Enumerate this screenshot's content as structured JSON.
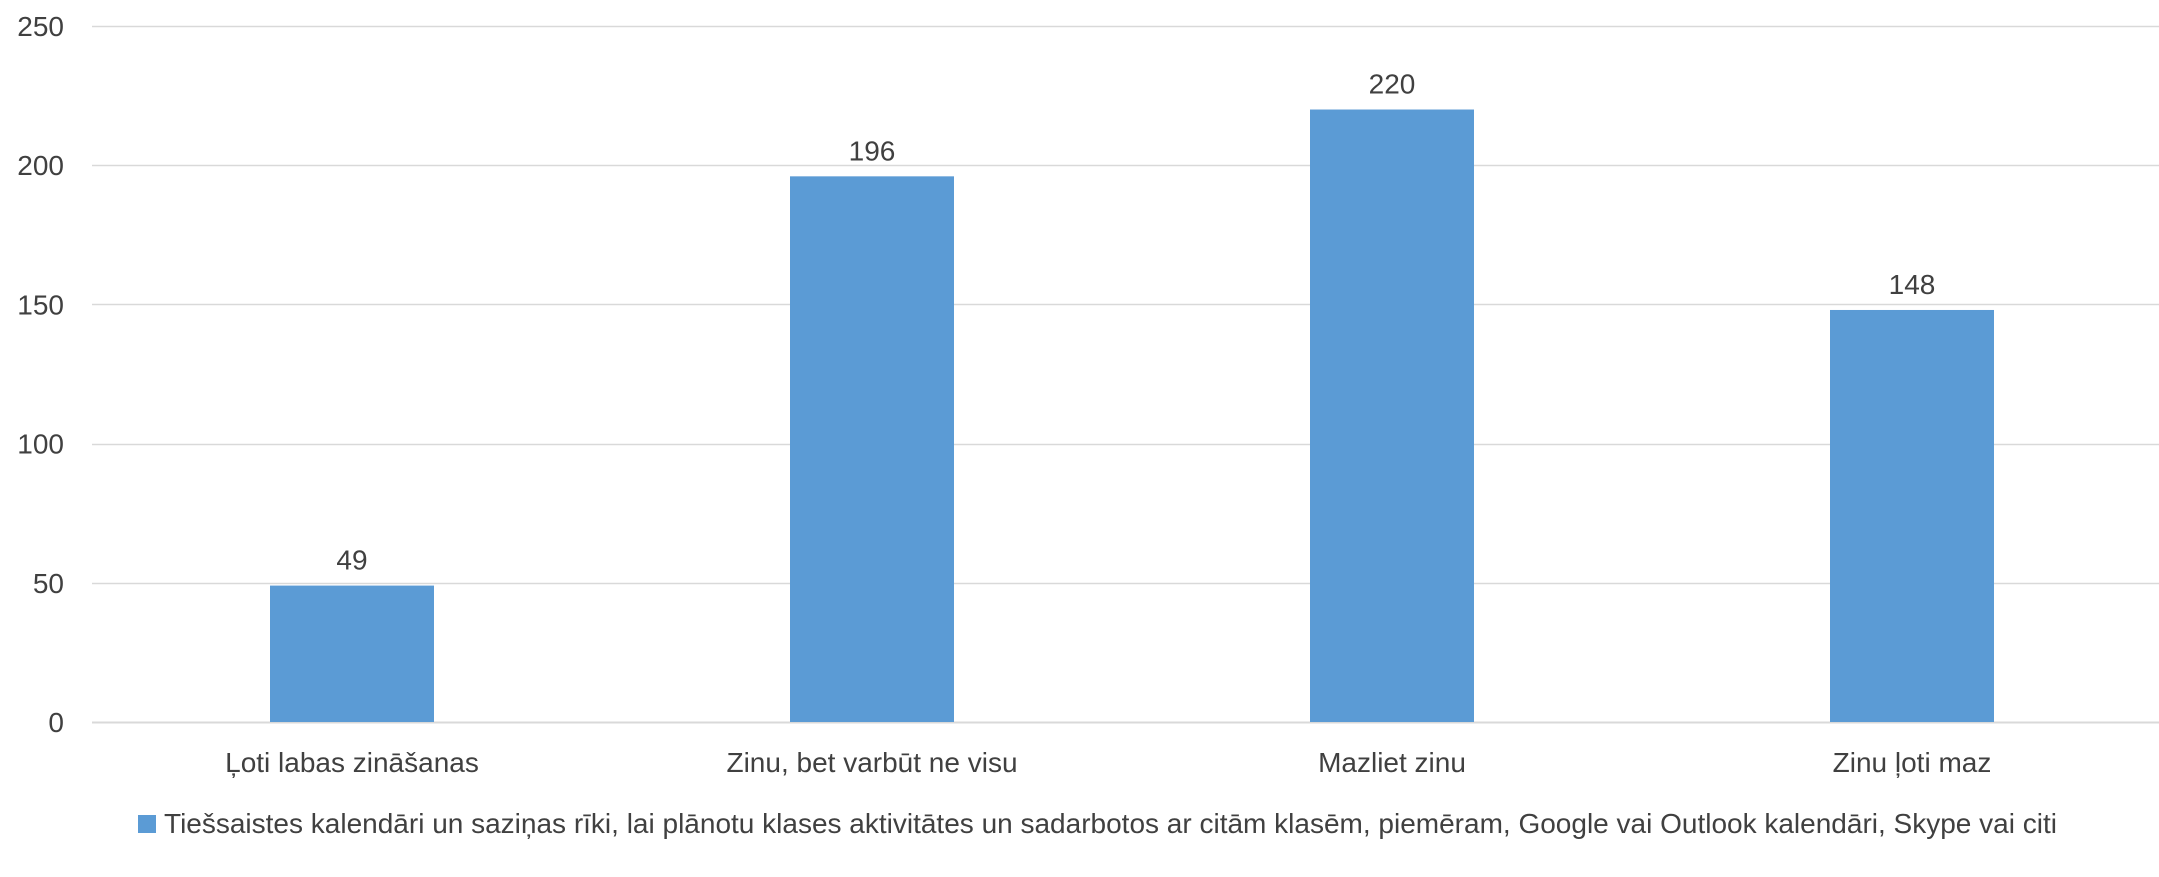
{
  "chart_data": {
    "type": "bar",
    "title": "",
    "xlabel": "",
    "ylabel": "",
    "categories": [
      "Ļoti labas zināšanas",
      "Zinu, bet varbūt ne visu",
      "Mazliet zinu",
      "Zinu ļoti maz"
    ],
    "series": [
      {
        "name": "Tiešsaistes kalendāri un saziņas rīki, lai plānotu klases aktivitātes un sadarbotos ar citām klasēm, piemēram, Google vai Outlook kalendāri, Skype vai citi",
        "values": [
          49,
          196,
          220,
          148
        ],
        "color": "#5b9bd5"
      }
    ],
    "ylim": [
      0,
      250
    ],
    "yticks": [
      0,
      50,
      100,
      150,
      200,
      250
    ],
    "grid": true,
    "gridColor": "#d9d9d9",
    "data_labels": true,
    "legend": "bottom-left"
  }
}
